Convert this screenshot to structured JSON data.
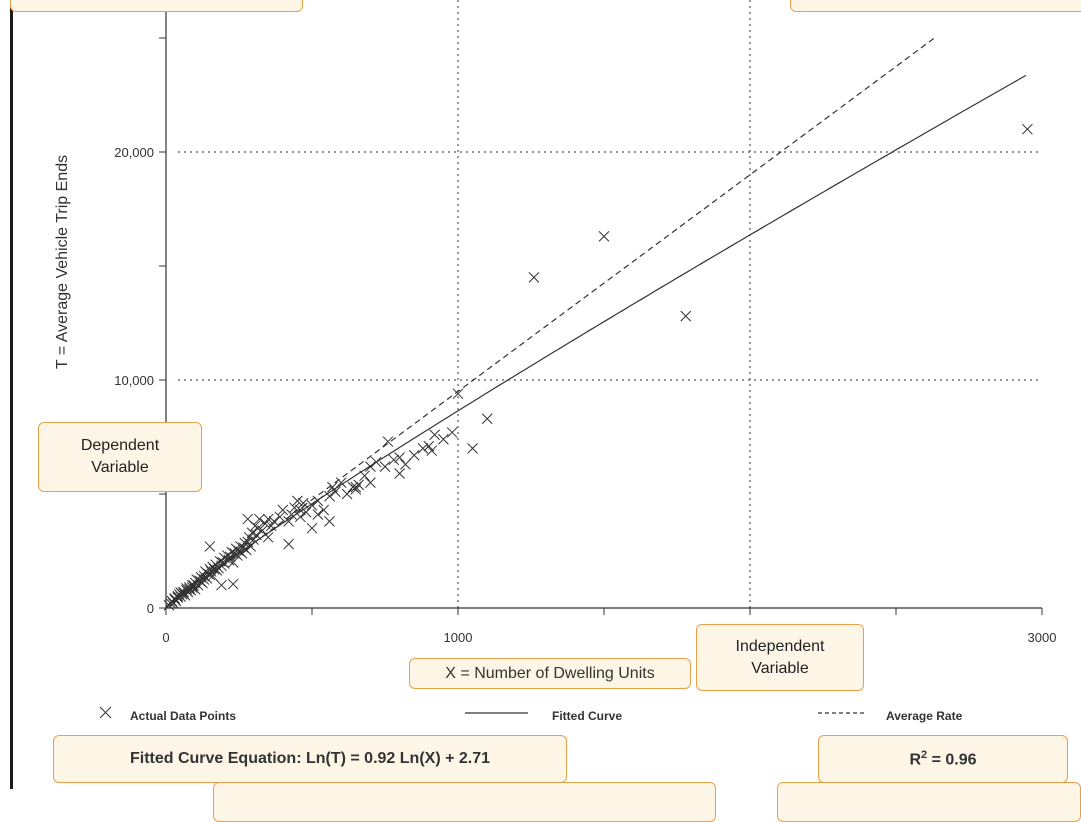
{
  "chart_data": {
    "type": "scatter",
    "xlabel": "X = Number of Dwelling Units",
    "ylabel": "T = Average Vehicle Trip Ends",
    "xlim": [
      0,
      3000
    ],
    "ylim": [
      0,
      26000
    ],
    "x_ticks": [
      "0",
      "1000",
      "3000"
    ],
    "y_ticks": [
      "0",
      "10,000",
      "20,000"
    ],
    "grid": true,
    "legend": {
      "placement": "bottom",
      "entries": [
        {
          "label": "Actual Data Points",
          "marker": "x"
        },
        {
          "label": "Fitted Curve",
          "line": "solid"
        },
        {
          "label": "Average Rate",
          "line": "dashed"
        }
      ]
    },
    "fitted_curve": {
      "equation": "Ln(T) = 0.92 Ln(X) + 2.71",
      "a": 0.92,
      "b": 2.71
    },
    "average_rate": 9.5,
    "r_squared_label": "R² = 0.96",
    "points": [
      [
        10,
        120
      ],
      [
        15,
        220
      ],
      [
        20,
        300
      ],
      [
        25,
        200
      ],
      [
        30,
        380
      ],
      [
        30,
        420
      ],
      [
        35,
        300
      ],
      [
        40,
        520
      ],
      [
        40,
        460
      ],
      [
        45,
        600
      ],
      [
        50,
        500
      ],
      [
        50,
        680
      ],
      [
        55,
        600
      ],
      [
        60,
        700
      ],
      [
        60,
        650
      ],
      [
        65,
        560
      ],
      [
        70,
        780
      ],
      [
        70,
        860
      ],
      [
        75,
        700
      ],
      [
        80,
        820
      ],
      [
        80,
        900
      ],
      [
        85,
        780
      ],
      [
        90,
        1000
      ],
      [
        90,
        900
      ],
      [
        95,
        980
      ],
      [
        100,
        1100
      ],
      [
        100,
        820
      ],
      [
        105,
        1250
      ],
      [
        110,
        1000
      ],
      [
        115,
        1200
      ],
      [
        120,
        1350
      ],
      [
        120,
        1150
      ],
      [
        125,
        1100
      ],
      [
        130,
        1400
      ],
      [
        130,
        1250
      ],
      [
        135,
        1600
      ],
      [
        140,
        1300
      ],
      [
        145,
        1500
      ],
      [
        150,
        1450
      ],
      [
        150,
        1700
      ],
      [
        155,
        1600
      ],
      [
        160,
        1800
      ],
      [
        160,
        1400
      ],
      [
        165,
        1700
      ],
      [
        170,
        1900
      ],
      [
        175,
        1650
      ],
      [
        180,
        1750
      ],
      [
        185,
        2050
      ],
      [
        190,
        1850
      ],
      [
        195,
        2000
      ],
      [
        200,
        1950
      ],
      [
        200,
        2200
      ],
      [
        210,
        2300
      ],
      [
        215,
        2100
      ],
      [
        220,
        2250
      ],
      [
        225,
        2450
      ],
      [
        230,
        2000
      ],
      [
        235,
        2400
      ],
      [
        240,
        2600
      ],
      [
        245,
        2300
      ],
      [
        250,
        2500
      ],
      [
        255,
        2700
      ],
      [
        260,
        2400
      ],
      [
        265,
        2650
      ],
      [
        270,
        2850
      ],
      [
        275,
        2550
      ],
      [
        280,
        2900
      ],
      [
        285,
        3100
      ],
      [
        290,
        2700
      ],
      [
        295,
        3300
      ],
      [
        300,
        3000
      ],
      [
        305,
        3600
      ],
      [
        310,
        3200
      ],
      [
        315,
        3500
      ],
      [
        320,
        3900
      ],
      [
        330,
        3400
      ],
      [
        340,
        3700
      ],
      [
        350,
        3900
      ],
      [
        360,
        3600
      ],
      [
        370,
        3800
      ],
      [
        390,
        4000
      ],
      [
        400,
        4300
      ],
      [
        420,
        3800
      ],
      [
        430,
        4100
      ],
      [
        440,
        4400
      ],
      [
        450,
        4700
      ],
      [
        460,
        4300
      ],
      [
        470,
        4600
      ],
      [
        480,
        4200
      ],
      [
        500,
        4500
      ],
      [
        520,
        4700
      ],
      [
        540,
        4300
      ],
      [
        560,
        4900
      ],
      [
        570,
        5300
      ],
      [
        580,
        5100
      ],
      [
        600,
        5500
      ],
      [
        620,
        5000
      ],
      [
        640,
        5300
      ],
      [
        650,
        5200
      ],
      [
        660,
        5400
      ],
      [
        680,
        5800
      ],
      [
        700,
        6200
      ],
      [
        720,
        6400
      ],
      [
        750,
        6200
      ],
      [
        780,
        6500
      ],
      [
        800,
        6600
      ],
      [
        820,
        6300
      ],
      [
        850,
        6700
      ],
      [
        880,
        7000
      ],
      [
        910,
        6900
      ],
      [
        950,
        7400
      ],
      [
        980,
        7700
      ],
      [
        150,
        2700
      ],
      [
        190,
        1000
      ],
      [
        230,
        1050
      ],
      [
        280,
        3900
      ],
      [
        350,
        3100
      ],
      [
        420,
        2800
      ],
      [
        460,
        4000
      ],
      [
        500,
        3500
      ],
      [
        520,
        4100
      ],
      [
        560,
        3800
      ],
      [
        650,
        5300
      ],
      [
        700,
        5500
      ],
      [
        760,
        7300
      ],
      [
        800,
        5900
      ],
      [
        900,
        7100
      ],
      [
        920,
        7600
      ],
      [
        1000,
        9400
      ],
      [
        1050,
        7000
      ],
      [
        1100,
        8300
      ],
      [
        1260,
        14500
      ],
      [
        1500,
        16300
      ],
      [
        1780,
        12800
      ],
      [
        2950,
        21000
      ]
    ]
  },
  "callouts": {
    "dependent": [
      "Dependent",
      "Variable"
    ],
    "independent": [
      "Independent",
      "Variable"
    ],
    "equation": "Fitted Curve Equation:  Ln(T) = 0.92 Ln(X) + 2.71",
    "r2_prefix": "R",
    "r2_sup": "2",
    "r2_suffix": " = 0.96"
  },
  "colors": {
    "ink": "#333333",
    "grid": "#555555",
    "callout_fill": "#fdf6e7",
    "callout_border": "#e9a04a"
  }
}
